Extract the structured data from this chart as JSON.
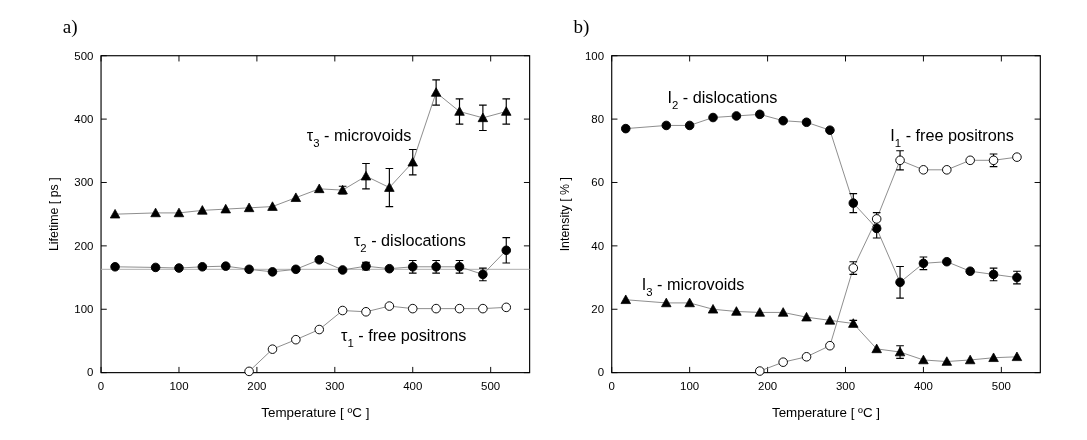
{
  "chart_data": [
    {
      "type": "line",
      "title": "a)",
      "xlabel": "Temperature  [ ºC ]",
      "ylabel": "Lifetime  [ ps ]",
      "xlim": [
        0,
        550
      ],
      "xticks": [
        0,
        100,
        200,
        300,
        400,
        500
      ],
      "ylim": [
        0,
        500
      ],
      "yticks": [
        0,
        100,
        200,
        300,
        400,
        500
      ],
      "grid": false,
      "line_style": "solid",
      "x": [
        18,
        70,
        100,
        130,
        160,
        190,
        220,
        250,
        280,
        310,
        340,
        370,
        400,
        430,
        460,
        490,
        520
      ],
      "series": [
        {
          "name": "τ$_{3}$ - microvoids",
          "color": "#000000",
          "marker": "triangle",
          "values": [
            250,
            252,
            252,
            256,
            258,
            260,
            262,
            276,
            290,
            288,
            310,
            292,
            332,
            442,
            412,
            402,
            412
          ],
          "errors": [
            null,
            null,
            null,
            null,
            null,
            null,
            null,
            null,
            null,
            6,
            20,
            30,
            20,
            20,
            20,
            20,
            20
          ]
        },
        {
          "name": "τ$_{2}$ - dislocations",
          "color": "#000000",
          "marker": "circle",
          "values": [
            167,
            166,
            165,
            167,
            168,
            163,
            159,
            163,
            178,
            162,
            168,
            164,
            167,
            167,
            167,
            155,
            193
          ],
          "errors": [
            null,
            null,
            null,
            null,
            null,
            null,
            null,
            null,
            null,
            null,
            6,
            null,
            10,
            10,
            10,
            10,
            20
          ]
        },
        {
          "name": "τ$_{1}$ - free positrons",
          "color": "#ffffff",
          "marker": "circle",
          "x": [
            190,
            220,
            250,
            280,
            310,
            340,
            370,
            400,
            430,
            460,
            490,
            520
          ],
          "values": [
            2,
            37,
            52,
            68,
            98,
            96,
            105,
            101,
            101,
            101,
            101,
            103
          ]
        }
      ],
      "ref_lines": [
        {
          "axis": "y",
          "value": 163,
          "color": "#aaaaaa"
        }
      ]
    },
    {
      "type": "line",
      "title": "b)",
      "xlabel": "Temperature  [ ºC ]",
      "ylabel": "Intensity  [ % ]",
      "xlim": [
        0,
        550
      ],
      "xticks": [
        0,
        100,
        200,
        300,
        400,
        500
      ],
      "ylim": [
        0,
        100
      ],
      "yticks": [
        0,
        20,
        40,
        60,
        80,
        100
      ],
      "grid": false,
      "line_style": "solid",
      "x": [
        18,
        70,
        100,
        130,
        160,
        190,
        220,
        250,
        280,
        310,
        340,
        370,
        400,
        430,
        460,
        490,
        520
      ],
      "series": [
        {
          "name": "I$_{2}$ - dislocations",
          "color": "#000000",
          "marker": "circle",
          "values": [
            77,
            78,
            78,
            80.5,
            81,
            81.5,
            79.5,
            79,
            76.5,
            53.5,
            45.5,
            28.5,
            34.5,
            35,
            32,
            31,
            30
          ],
          "errors": [
            null,
            null,
            null,
            null,
            null,
            null,
            null,
            null,
            null,
            3,
            3,
            5,
            2,
            null,
            null,
            2,
            2
          ]
        },
        {
          "name": "I$_{1}$ - free positrons",
          "color": "#ffffff",
          "marker": "circle",
          "x": [
            190,
            220,
            250,
            280,
            310,
            340,
            370,
            400,
            430,
            460,
            490,
            520
          ],
          "values": [
            0.5,
            3.3,
            5,
            8.5,
            33,
            48.5,
            67,
            64,
            64,
            67,
            67,
            68
          ],
          "errors": [
            null,
            null,
            null,
            null,
            2,
            2,
            3,
            null,
            null,
            null,
            2,
            null
          ]
        },
        {
          "name": "I$_{3}$ - microvoids",
          "color": "#000000",
          "marker": "triangle",
          "values": [
            23,
            22,
            22,
            20,
            19.3,
            19,
            19,
            17.5,
            16.5,
            15.5,
            7.5,
            6.5,
            4,
            3.5,
            4,
            4.7,
            5
          ],
          "errors": [
            null,
            null,
            null,
            null,
            null,
            null,
            null,
            null,
            null,
            1,
            null,
            2,
            null,
            null,
            null,
            null,
            null
          ]
        }
      ]
    }
  ]
}
